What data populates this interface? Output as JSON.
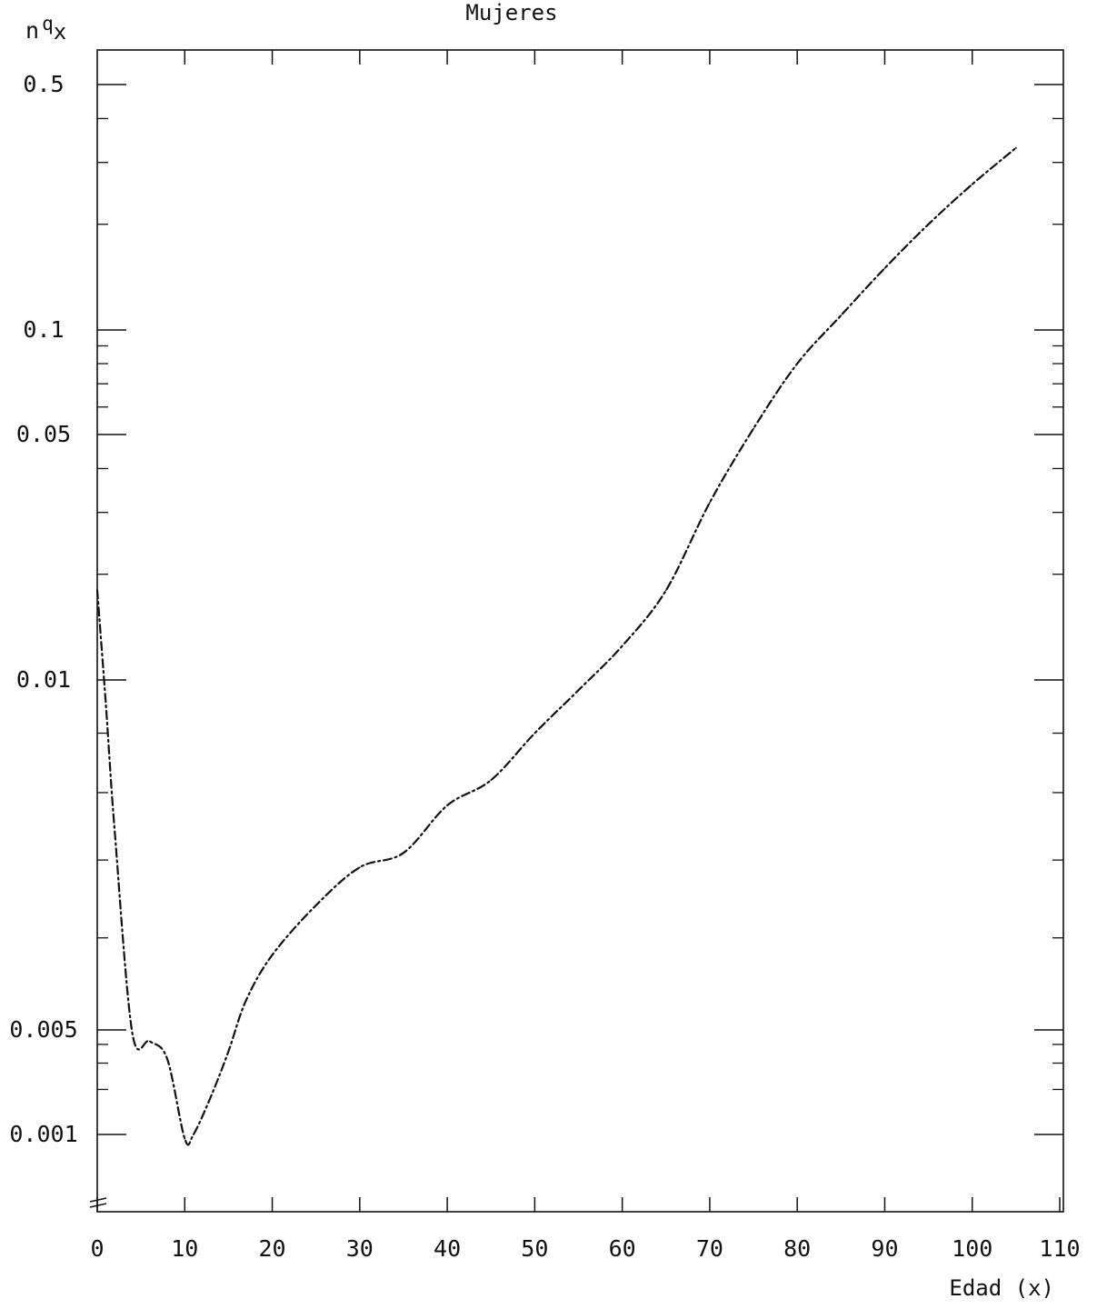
{
  "chart_data": {
    "type": "line",
    "title": "Mujeres",
    "ylabel": {
      "main": "n",
      "sup": "q",
      "sub": "x"
    },
    "xlabel": "Edad (x)",
    "x_ticks": [
      0,
      10,
      20,
      30,
      40,
      50,
      60,
      70,
      80,
      90,
      100,
      110
    ],
    "x_tick_labels": [
      "0",
      "10",
      "20",
      "30",
      "40",
      "50",
      "60",
      "70",
      "80",
      "90",
      "100",
      "110"
    ],
    "y_tick_labels": [
      {
        "value": 0.5,
        "label": "0.5"
      },
      {
        "value": 0.1,
        "label": "0.1"
      },
      {
        "value": 0.05,
        "label": "0.05"
      },
      {
        "value": 0.01,
        "label": "0.01"
      },
      {
        "value": 0.005,
        "label": "0.005"
      },
      {
        "value": 0.001,
        "label": "0.001"
      }
    ],
    "y_scale_note": "scale broken below 0.001; labeled ticks are not uniformly spaced on a log scale",
    "xlim": [
      0,
      110
    ],
    "grid": false,
    "line_style": "dash-dot",
    "series": [
      {
        "name": "",
        "x": [
          0,
          1,
          2,
          4,
          6,
          8,
          10,
          11,
          13,
          15,
          17,
          20,
          25,
          30,
          35,
          40,
          45,
          50,
          55,
          60,
          65,
          70,
          75,
          80,
          85,
          90,
          95,
          100,
          105
        ],
        "y": [
          0.018,
          0.0095,
          0.0074,
          0.0048,
          0.0042,
          0.0032,
          0.00098,
          0.001,
          0.0018,
          0.0036,
          0.0053,
          0.0058,
          0.0064,
          0.0069,
          0.0071,
          0.0078,
          0.0082,
          0.009,
          0.0098,
          0.0125,
          0.018,
          0.032,
          0.052,
          0.08,
          0.11,
          0.15,
          0.2,
          0.26,
          0.33
        ]
      }
    ],
    "colors": {
      "line": "#111111",
      "axis": "#111111",
      "background": "#ffffff"
    }
  }
}
